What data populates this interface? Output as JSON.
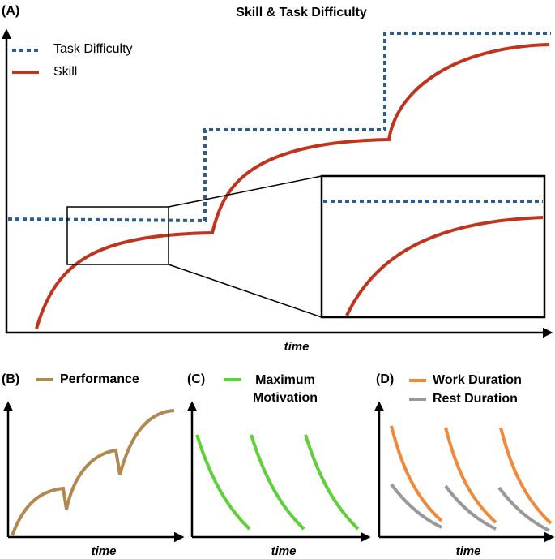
{
  "panels": [
    {
      "label": "(A)",
      "title": "Skill & Task Difficulty",
      "legend": [
        "Task Difficulty",
        "Skill"
      ],
      "x_label": "time"
    },
    {
      "label": "(B)",
      "legend": [
        "Performance"
      ],
      "x_label": "time"
    },
    {
      "label": "(C)",
      "legend": [
        "Maximum",
        "Motivation"
      ],
      "x_label": "time"
    },
    {
      "label": "(D)",
      "legend": [
        "Work Duration",
        "Rest Duration"
      ],
      "x_label": "time"
    }
  ]
}
